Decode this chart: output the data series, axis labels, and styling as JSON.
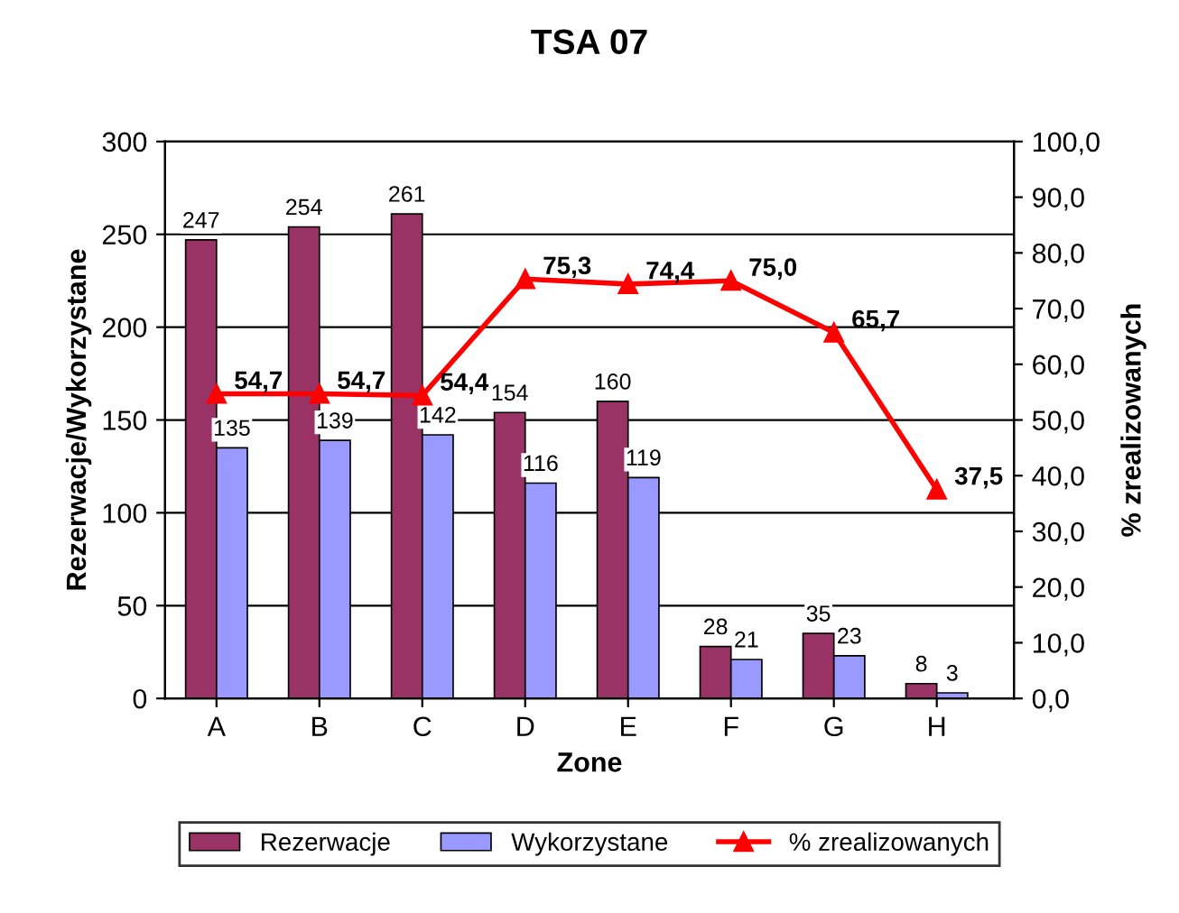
{
  "chart_data": {
    "type": "bar",
    "title": "TSA 07",
    "xlabel": "Zone",
    "ylabel": "Rezerwacje/Wykorzystane",
    "y2label": "% zrealizowanych",
    "categories": [
      "A",
      "B",
      "C",
      "D",
      "E",
      "F",
      "G",
      "H"
    ],
    "series": [
      {
        "name": "Rezerwacje",
        "color": "#993366",
        "values": [
          247,
          254,
          261,
          154,
          160,
          28,
          35,
          8
        ],
        "value_labels": [
          "247",
          "254",
          "261",
          "154",
          "160",
          "28",
          "35",
          "8"
        ]
      },
      {
        "name": "Wykorzystane",
        "color": "#9999ff",
        "values": [
          135,
          139,
          142,
          116,
          119,
          21,
          23,
          3
        ],
        "value_labels": [
          "135",
          "139",
          "142",
          "116",
          "119",
          "21",
          "23",
          "3"
        ]
      },
      {
        "name": "% zrealizowanych",
        "type": "line",
        "axis": "y2",
        "color": "#ff0000",
        "marker": "triangle",
        "line_style": "solid",
        "values": [
          54.7,
          54.7,
          54.4,
          75.3,
          74.4,
          75.0,
          65.7,
          37.5
        ],
        "value_labels": [
          "54,7",
          "54,7",
          "54,4",
          "75,3",
          "74,4",
          "75,0",
          "65,7",
          "37,5"
        ]
      }
    ],
    "ylim": [
      0,
      300
    ],
    "yticks": [
      0,
      50,
      100,
      150,
      200,
      250,
      300
    ],
    "y2lim": [
      0,
      100
    ],
    "y2ticks": [
      {
        "value": 0,
        "label": "0,0"
      },
      {
        "value": 10,
        "label": "10,0"
      },
      {
        "value": 20,
        "label": "20,0"
      },
      {
        "value": 30,
        "label": "30,0"
      },
      {
        "value": 40,
        "label": "40,0"
      },
      {
        "value": 50,
        "label": "50,0"
      },
      {
        "value": 60,
        "label": "60,0"
      },
      {
        "value": 70,
        "label": "70,0"
      },
      {
        "value": 80,
        "label": "80,0"
      },
      {
        "value": 90,
        "label": "90,0"
      },
      {
        "value": 100,
        "label": "100,0"
      }
    ],
    "grid": "y",
    "legend": "bottom"
  }
}
